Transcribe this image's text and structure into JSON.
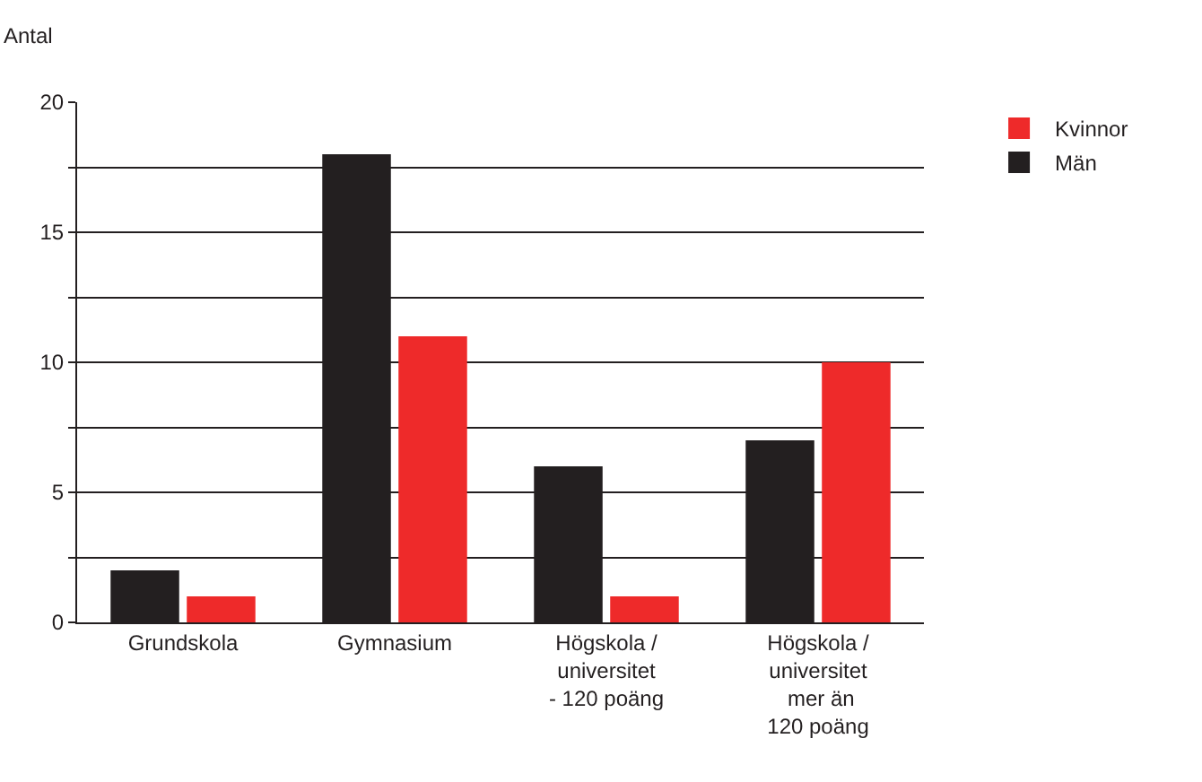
{
  "chart_data": {
    "type": "bar",
    "ylabel": "Antal",
    "categories": [
      "Grundskola",
      "Gymnasium",
      "Högskola /\nuniversitet\n- 120 poäng",
      "Högskola /\nuniversitet\n mer än\n120 poäng"
    ],
    "series": [
      {
        "name": "Män",
        "color": "#231f20",
        "values": [
          2,
          18,
          6,
          7
        ]
      },
      {
        "name": "Kvinnor",
        "color": "#ee2a2a",
        "values": [
          1,
          11,
          1,
          10
        ]
      }
    ],
    "ylim": [
      0,
      20
    ],
    "yticks": [
      0,
      {
        "value": 2.5,
        "label": null
      },
      5,
      {
        "value": 7.5,
        "label": null
      },
      10,
      {
        "value": 12.5,
        "label": null
      },
      15,
      {
        "value": 17.5,
        "label": null
      },
      20
    ],
    "grid": "y",
    "legend": "top right"
  }
}
